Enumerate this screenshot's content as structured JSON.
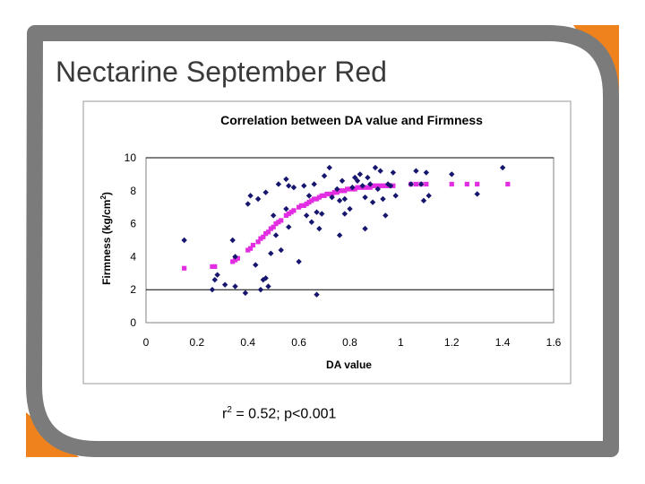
{
  "slide": {
    "title": "Nectarine September Red",
    "colors": {
      "frame": "#7b7b7b",
      "accent": "#f0821e",
      "observed": "#16166e",
      "fitted": "#e22de2"
    }
  },
  "stats": {
    "r": "r",
    "exp": "2",
    "rest": " = 0.52; p<0.001"
  },
  "chart_data": {
    "type": "scatter",
    "title": "Correlation between DA value and Firmness",
    "xlabel": "DA value",
    "ylabel": {
      "text": "Firmness (kg/cm",
      "sup": "2",
      "close": ")"
    },
    "xlim": [
      0,
      1.6
    ],
    "ylim": [
      0,
      10
    ],
    "xticks": [
      "0",
      "0.2",
      "0.4",
      "0.6",
      "0.8",
      "1",
      "1.2",
      "1.4",
      "1.6"
    ],
    "yticks": [
      "0",
      "2",
      "4",
      "6",
      "8",
      "10"
    ],
    "grid": {
      "horizontal": [
        2,
        10
      ],
      "vertical": false
    },
    "legend": "none",
    "series": [
      {
        "marker": "diamond",
        "color": "#16166e",
        "points": [
          [
            0.15,
            5.0
          ],
          [
            0.26,
            2.0
          ],
          [
            0.27,
            2.6
          ],
          [
            0.28,
            2.9
          ],
          [
            0.31,
            2.3
          ],
          [
            0.34,
            5.0
          ],
          [
            0.35,
            4.0
          ],
          [
            0.35,
            2.2
          ],
          [
            0.39,
            1.8
          ],
          [
            0.4,
            7.2
          ],
          [
            0.41,
            7.7
          ],
          [
            0.43,
            3.5
          ],
          [
            0.44,
            7.5
          ],
          [
            0.45,
            2.0
          ],
          [
            0.46,
            2.6
          ],
          [
            0.47,
            2.7
          ],
          [
            0.47,
            7.9
          ],
          [
            0.48,
            2.2
          ],
          [
            0.49,
            4.2
          ],
          [
            0.5,
            6.5
          ],
          [
            0.51,
            5.3
          ],
          [
            0.53,
            4.4
          ],
          [
            0.52,
            8.4
          ],
          [
            0.55,
            6.9
          ],
          [
            0.55,
            8.7
          ],
          [
            0.56,
            5.8
          ],
          [
            0.56,
            8.3
          ],
          [
            0.58,
            8.2
          ],
          [
            0.6,
            3.7
          ],
          [
            0.62,
            8.3
          ],
          [
            0.63,
            6.5
          ],
          [
            0.64,
            7.7
          ],
          [
            0.65,
            6.1
          ],
          [
            0.66,
            8.4
          ],
          [
            0.67,
            6.7
          ],
          [
            0.67,
            1.7
          ],
          [
            0.68,
            5.7
          ],
          [
            0.69,
            6.6
          ],
          [
            0.7,
            8.9
          ],
          [
            0.72,
            9.4
          ],
          [
            0.73,
            7.6
          ],
          [
            0.75,
            8.1
          ],
          [
            0.76,
            7.4
          ],
          [
            0.76,
            5.3
          ],
          [
            0.77,
            8.6
          ],
          [
            0.78,
            6.6
          ],
          [
            0.78,
            7.5
          ],
          [
            0.8,
            6.9
          ],
          [
            0.81,
            8.2
          ],
          [
            0.82,
            8.8
          ],
          [
            0.83,
            8.6
          ],
          [
            0.84,
            9.0
          ],
          [
            0.85,
            8.3
          ],
          [
            0.86,
            7.6
          ],
          [
            0.86,
            5.7
          ],
          [
            0.87,
            8.8
          ],
          [
            0.88,
            8.4
          ],
          [
            0.89,
            7.3
          ],
          [
            0.9,
            9.4
          ],
          [
            0.91,
            8.1
          ],
          [
            0.92,
            9.2
          ],
          [
            0.93,
            7.5
          ],
          [
            0.94,
            6.5
          ],
          [
            0.95,
            8.4
          ],
          [
            0.96,
            8.3
          ],
          [
            0.97,
            9.1
          ],
          [
            0.98,
            7.7
          ],
          [
            1.04,
            8.4
          ],
          [
            1.06,
            9.2
          ],
          [
            1.08,
            8.4
          ],
          [
            1.09,
            7.4
          ],
          [
            1.1,
            9.1
          ],
          [
            1.11,
            7.7
          ],
          [
            1.2,
            9.0
          ],
          [
            1.3,
            7.8
          ],
          [
            1.4,
            9.4
          ]
        ]
      },
      {
        "marker": "square",
        "color": "#e22de2",
        "points": [
          [
            0.15,
            3.3
          ],
          [
            0.26,
            3.4
          ],
          [
            0.27,
            3.4
          ],
          [
            0.34,
            3.7
          ],
          [
            0.35,
            3.8
          ],
          [
            0.36,
            3.9
          ],
          [
            0.4,
            4.4
          ],
          [
            0.41,
            4.5
          ],
          [
            0.42,
            4.7
          ],
          [
            0.44,
            4.9
          ],
          [
            0.45,
            5.1
          ],
          [
            0.46,
            5.2
          ],
          [
            0.47,
            5.4
          ],
          [
            0.48,
            5.5
          ],
          [
            0.49,
            5.7
          ],
          [
            0.5,
            5.8
          ],
          [
            0.51,
            6.0
          ],
          [
            0.52,
            6.1
          ],
          [
            0.53,
            6.2
          ],
          [
            0.55,
            6.5
          ],
          [
            0.56,
            6.6
          ],
          [
            0.57,
            6.7
          ],
          [
            0.58,
            6.8
          ],
          [
            0.6,
            7.0
          ],
          [
            0.61,
            7.1
          ],
          [
            0.62,
            7.1
          ],
          [
            0.63,
            7.2
          ],
          [
            0.64,
            7.3
          ],
          [
            0.65,
            7.4
          ],
          [
            0.66,
            7.5
          ],
          [
            0.67,
            7.5
          ],
          [
            0.68,
            7.6
          ],
          [
            0.69,
            7.7
          ],
          [
            0.7,
            7.7
          ],
          [
            0.71,
            7.8
          ],
          [
            0.72,
            7.8
          ],
          [
            0.73,
            7.8
          ],
          [
            0.74,
            7.9
          ],
          [
            0.75,
            7.9
          ],
          [
            0.76,
            8.0
          ],
          [
            0.77,
            8.0
          ],
          [
            0.78,
            8.0
          ],
          [
            0.79,
            8.1
          ],
          [
            0.8,
            8.1
          ],
          [
            0.81,
            8.1
          ],
          [
            0.82,
            8.1
          ],
          [
            0.83,
            8.2
          ],
          [
            0.84,
            8.2
          ],
          [
            0.85,
            8.2
          ],
          [
            0.86,
            8.2
          ],
          [
            0.87,
            8.2
          ],
          [
            0.88,
            8.2
          ],
          [
            0.89,
            8.3
          ],
          [
            0.9,
            8.3
          ],
          [
            0.91,
            8.3
          ],
          [
            0.92,
            8.3
          ],
          [
            0.93,
            8.3
          ],
          [
            0.94,
            8.3
          ],
          [
            0.95,
            8.3
          ],
          [
            0.96,
            8.3
          ],
          [
            0.97,
            8.3
          ],
          [
            1.04,
            8.4
          ],
          [
            1.06,
            8.4
          ],
          [
            1.08,
            8.4
          ],
          [
            1.1,
            8.4
          ],
          [
            1.2,
            8.4
          ],
          [
            1.26,
            8.4
          ],
          [
            1.3,
            8.4
          ],
          [
            1.42,
            8.4
          ]
        ]
      }
    ]
  }
}
